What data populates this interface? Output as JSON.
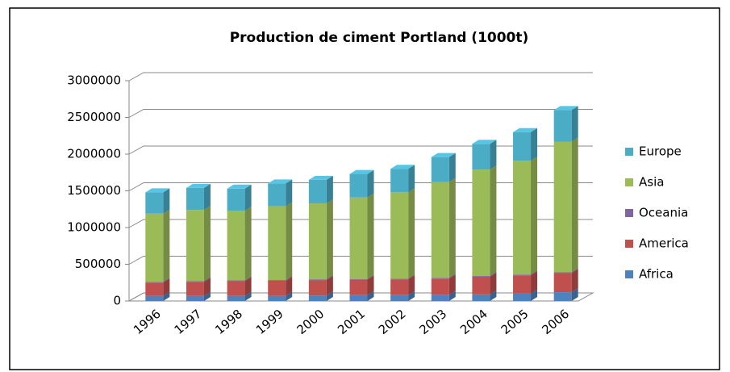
{
  "chart_data": {
    "type": "bar3d_stacked",
    "title": "Production de ciment Portland (1000t)",
    "categories": [
      "1996",
      "1997",
      "1998",
      "1999",
      "2000",
      "2001",
      "2002",
      "2003",
      "2004",
      "2005",
      "2006"
    ],
    "series": [
      {
        "name": "Africa",
        "color": "#4f81bd",
        "values": [
          70000,
          70000,
          70000,
          70000,
          75000,
          80000,
          80000,
          85000,
          90000,
          100000,
          120000
        ]
      },
      {
        "name": "America",
        "color": "#c0504d",
        "values": [
          180000,
          190000,
          200000,
          205000,
          210000,
          210000,
          215000,
          220000,
          240000,
          250000,
          260000
        ]
      },
      {
        "name": "Oceania",
        "color": "#8064a2",
        "values": [
          10000,
          10000,
          10000,
          10000,
          10000,
          10000,
          10000,
          10000,
          10000,
          10000,
          10000
        ]
      },
      {
        "name": "Asia",
        "color": "#9bbb59",
        "values": [
          930000,
          970000,
          950000,
          1005000,
          1035000,
          1110000,
          1175000,
          1305000,
          1450000,
          1550000,
          1780000
        ]
      },
      {
        "name": "Europe",
        "color": "#4bacc6",
        "values": [
          290000,
          300000,
          300000,
          310000,
          320000,
          320000,
          320000,
          340000,
          350000,
          390000,
          430000
        ]
      }
    ],
    "ylim": [
      0,
      3000000
    ],
    "yticks": [
      0,
      500000,
      1000000,
      1500000,
      2000000,
      2500000,
      3000000
    ],
    "grid": true,
    "legend": "right"
  }
}
